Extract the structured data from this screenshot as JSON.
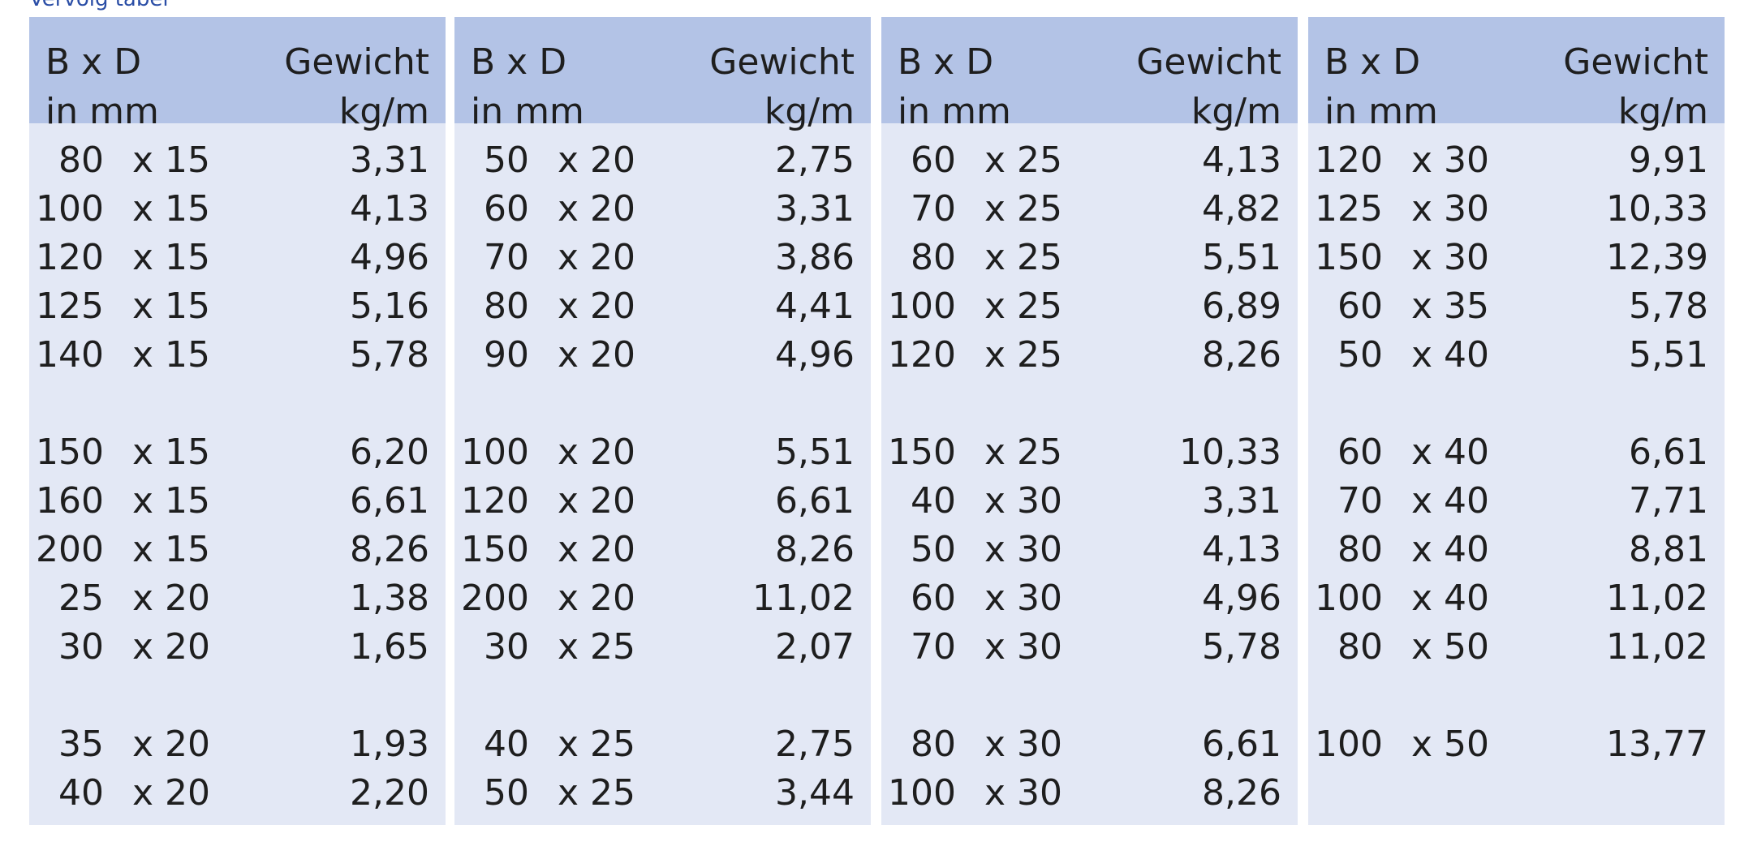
{
  "caption": "Vervolg tabel",
  "columns": [
    {
      "header": {
        "dims": "B x D",
        "dims_unit": "in mm",
        "weight": "Gewicht",
        "weight_unit": "kg/m"
      },
      "groups": [
        [
          {
            "b": "80",
            "d": "x 15",
            "w": "3,31"
          },
          {
            "b": "100",
            "d": "x 15",
            "w": "4,13"
          },
          {
            "b": "120",
            "d": "x 15",
            "w": "4,96"
          },
          {
            "b": "125",
            "d": "x 15",
            "w": "5,16"
          },
          {
            "b": "140",
            "d": "x 15",
            "w": "5,78"
          }
        ],
        [
          {
            "b": "150",
            "d": "x 15",
            "w": "6,20"
          },
          {
            "b": "160",
            "d": "x 15",
            "w": "6,61"
          },
          {
            "b": "200",
            "d": "x 15",
            "w": "8,26"
          },
          {
            "b": "25",
            "d": "x 20",
            "w": "1,38"
          },
          {
            "b": "30",
            "d": "x 20",
            "w": "1,65"
          }
        ],
        [
          {
            "b": "35",
            "d": "x 20",
            "w": "1,93"
          },
          {
            "b": "40",
            "d": "x 20",
            "w": "2,20"
          }
        ]
      ]
    },
    {
      "header": {
        "dims": "B x D",
        "dims_unit": "in mm",
        "weight": "Gewicht",
        "weight_unit": "kg/m"
      },
      "groups": [
        [
          {
            "b": "50",
            "d": "x 20",
            "w": "2,75"
          },
          {
            "b": "60",
            "d": "x 20",
            "w": "3,31"
          },
          {
            "b": "70",
            "d": "x 20",
            "w": "3,86"
          },
          {
            "b": "80",
            "d": "x 20",
            "w": "4,41"
          },
          {
            "b": "90",
            "d": "x 20",
            "w": "4,96"
          }
        ],
        [
          {
            "b": "100",
            "d": "x 20",
            "w": "5,51"
          },
          {
            "b": "120",
            "d": "x 20",
            "w": "6,61"
          },
          {
            "b": "150",
            "d": "x 20",
            "w": "8,26"
          },
          {
            "b": "200",
            "d": "x 20",
            "w": "11,02"
          },
          {
            "b": "30",
            "d": "x 25",
            "w": "2,07"
          }
        ],
        [
          {
            "b": "40",
            "d": "x 25",
            "w": "2,75"
          },
          {
            "b": "50",
            "d": "x 25",
            "w": "3,44"
          }
        ]
      ]
    },
    {
      "header": {
        "dims": "B x D",
        "dims_unit": "in mm",
        "weight": "Gewicht",
        "weight_unit": "kg/m"
      },
      "groups": [
        [
          {
            "b": "60",
            "d": "x 25",
            "w": "4,13"
          },
          {
            "b": "70",
            "d": "x 25",
            "w": "4,82"
          },
          {
            "b": "80",
            "d": "x 25",
            "w": "5,51"
          },
          {
            "b": "100",
            "d": "x 25",
            "w": "6,89"
          },
          {
            "b": "120",
            "d": "x 25",
            "w": "8,26"
          }
        ],
        [
          {
            "b": "150",
            "d": "x 25",
            "w": "10,33"
          },
          {
            "b": "40",
            "d": "x 30",
            "w": "3,31"
          },
          {
            "b": "50",
            "d": "x 30",
            "w": "4,13"
          },
          {
            "b": "60",
            "d": "x 30",
            "w": "4,96"
          },
          {
            "b": "70",
            "d": "x 30",
            "w": "5,78"
          }
        ],
        [
          {
            "b": "80",
            "d": "x 30",
            "w": "6,61"
          },
          {
            "b": "100",
            "d": "x 30",
            "w": "8,26"
          }
        ]
      ]
    },
    {
      "header": {
        "dims": "B x D",
        "dims_unit": "in mm",
        "weight": "Gewicht",
        "weight_unit": "kg/m"
      },
      "groups": [
        [
          {
            "b": "120",
            "d": "x 30",
            "w": "9,91"
          },
          {
            "b": "125",
            "d": "x 30",
            "w": "10,33"
          },
          {
            "b": "150",
            "d": "x 30",
            "w": "12,39"
          },
          {
            "b": "60",
            "d": "x 35",
            "w": "5,78"
          },
          {
            "b": "50",
            "d": "x 40",
            "w": "5,51"
          }
        ],
        [
          {
            "b": "60",
            "d": "x 40",
            "w": "6,61"
          },
          {
            "b": "70",
            "d": "x 40",
            "w": "7,71"
          },
          {
            "b": "80",
            "d": "x 40",
            "w": "8,81"
          },
          {
            "b": "100",
            "d": "x 40",
            "w": "11,02"
          },
          {
            "b": "80",
            "d": "x 50",
            "w": "11,02"
          }
        ],
        [
          {
            "b": "100",
            "d": "x 50",
            "w": "13,77"
          }
        ]
      ]
    }
  ]
}
